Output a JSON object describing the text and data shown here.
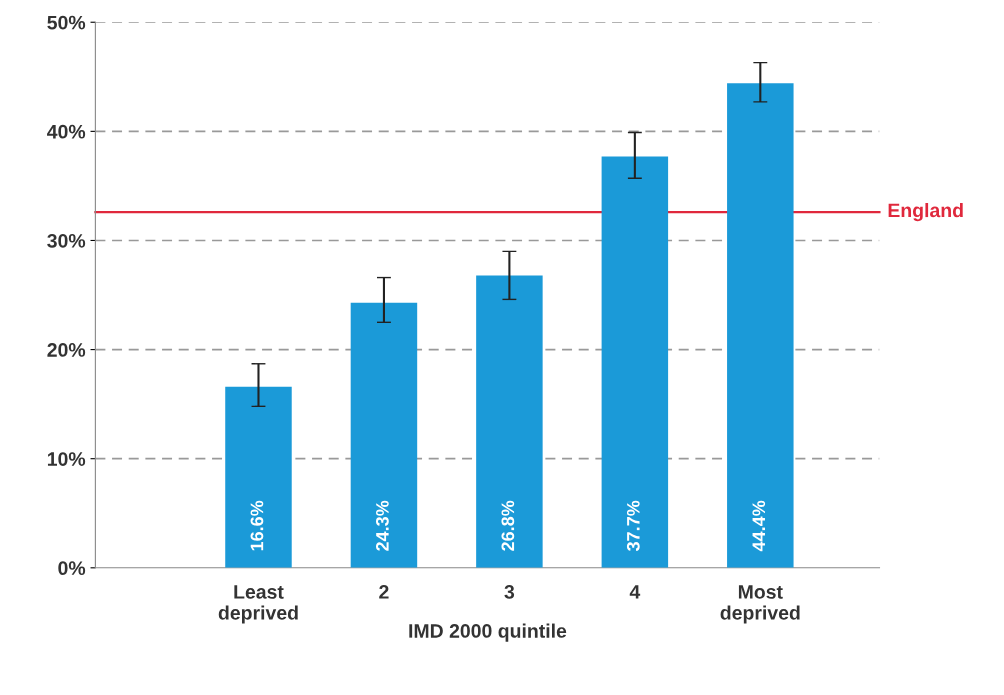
{
  "chart_data": {
    "type": "bar",
    "xlabel": "IMD 2000 quintile",
    "categories": [
      "Least\ndeprived",
      "2",
      "3",
      "4",
      "Most\ndeprived"
    ],
    "values": [
      16.6,
      24.3,
      26.8,
      37.7,
      44.4
    ],
    "errors": [
      [
        14.8,
        18.7
      ],
      [
        22.5,
        26.6
      ],
      [
        24.6,
        29.0
      ],
      [
        35.7,
        39.9
      ],
      [
        42.7,
        46.3
      ]
    ],
    "color": "#1b9ad8",
    "value_labels": [
      "16.6%",
      "24.3%",
      "26.8%",
      "37.7%",
      "44.4%"
    ],
    "ylim": [
      0,
      50
    ],
    "yticks": [
      {
        "value": 0,
        "label": "0%"
      },
      {
        "value": 10,
        "label": "10%"
      },
      {
        "value": 20,
        "label": "20%"
      },
      {
        "value": 30,
        "label": "30%"
      },
      {
        "value": 40,
        "label": "40%"
      },
      {
        "value": 50,
        "label": "50%"
      }
    ],
    "ref_lines": [
      {
        "axis": "y",
        "value": 32.6,
        "label": "England",
        "color": "#e0283c"
      }
    ],
    "grid": "y"
  }
}
